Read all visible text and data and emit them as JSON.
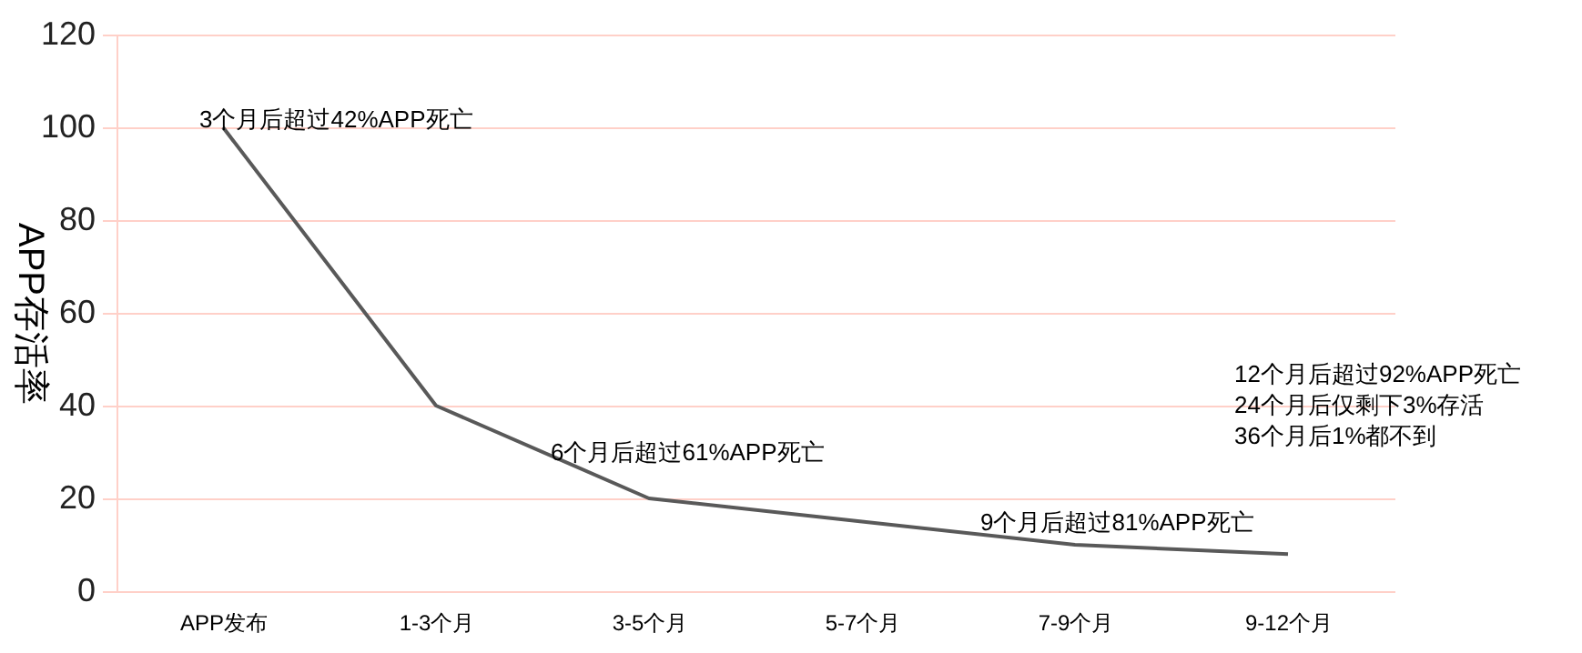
{
  "chart_data": {
    "type": "line",
    "ylabel": "APP存活率",
    "categories": [
      "APP发布",
      "1-3个月",
      "3-5个月",
      "5-7个月",
      "7-9个月",
      "9-12个月"
    ],
    "series": [
      {
        "color": "#595959",
        "values": [
          100,
          40,
          20,
          15,
          10,
          8
        ]
      }
    ],
    "ylim": [
      0,
      120
    ],
    "yticks": [
      0,
      20,
      40,
      60,
      80,
      100,
      120
    ],
    "grid": "y",
    "marker": "none",
    "line_style": "solid",
    "annotations": [
      {
        "text": "3个月后超过42%APP死亡",
        "x": "APP发布",
        "y": 100
      },
      {
        "text": "6个月后超过61%APP死亡",
        "x": "3-5个月",
        "y": 20
      },
      {
        "text": "9个月后超过81%APP死亡",
        "x": "7-9个月",
        "y": 10
      },
      "12个月后超过92%APP死亡",
      "24个月后仅剩下3%存活",
      "36个月后1%都不到"
    ]
  }
}
